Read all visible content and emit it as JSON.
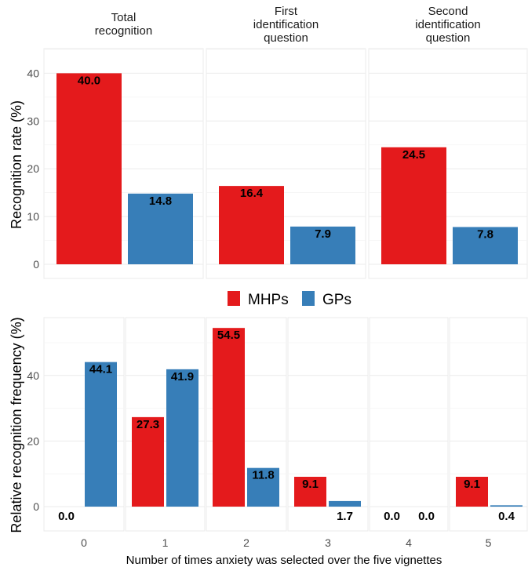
{
  "chart_data": [
    {
      "type": "bar",
      "facets": [
        "Total\nrecognition",
        "First\nidentification\nquestion",
        "Second\nidentification\nquestion"
      ],
      "series": [
        {
          "name": "MHPs",
          "color": "#E41A1C",
          "values": [
            40.0,
            16.4,
            24.5
          ]
        },
        {
          "name": "GPs",
          "color": "#377EB8",
          "values": [
            14.8,
            7.9,
            7.8
          ]
        }
      ],
      "data_labels": {
        "MHPs": [
          "40.0",
          "16.4",
          "24.5"
        ],
        "GPs": [
          "14.8",
          "7.9",
          "7.8"
        ]
      },
      "ylabel": "Recognition rate (%)",
      "ylim": [
        0,
        45
      ],
      "yticks": [
        0,
        10,
        20,
        30,
        40
      ],
      "grid": true
    },
    {
      "type": "bar",
      "categories": [
        "0",
        "1",
        "2",
        "3",
        "4",
        "5"
      ],
      "series": [
        {
          "name": "MHPs",
          "color": "#E41A1C",
          "values": [
            0.0,
            27.3,
            54.5,
            9.1,
            0.0,
            9.1
          ]
        },
        {
          "name": "GPs",
          "color": "#377EB8",
          "values": [
            44.1,
            41.9,
            11.8,
            1.7,
            0.0,
            0.4
          ]
        }
      ],
      "data_labels": {
        "MHPs": [
          "0.0",
          "27.3",
          "54.5",
          "9.1",
          "0.0",
          "9.1"
        ],
        "GPs": [
          "44.1",
          "41.9",
          "11.8",
          "1.7",
          "0.0",
          "0.4"
        ]
      },
      "xlabel": "Number of times anxiety was selected over the five vignettes",
      "ylabel": "Relative recognition frequency (%)",
      "ylim": [
        -3,
        58
      ],
      "yticks": [
        0,
        20,
        40
      ],
      "grid": true
    }
  ],
  "legend": {
    "placement": "center",
    "entries": [
      {
        "label": "MHPs",
        "color": "#E41A1C"
      },
      {
        "label": "GPs",
        "color": "#377EB8"
      }
    ]
  }
}
